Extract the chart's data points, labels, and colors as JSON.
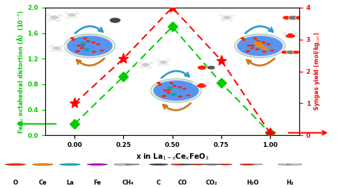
{
  "xlabel": "x in La$_{1-x}$Ce$_x$FeO$_3$",
  "ylabel_left": "FeO$_6$ octahedral distortion (Å)  (10$^{-4}$)",
  "ylabel_right": "Syngas yield (mol/kg$_{cat}$)",
  "ylim_left": [
    0.0,
    2.0
  ],
  "ylim_right": [
    0.0,
    4.0
  ],
  "xlim": [
    -0.15,
    1.15
  ],
  "xticks": [
    0,
    0.25,
    0.5,
    0.75,
    1.0
  ],
  "yticks_left": [
    0.0,
    0.4,
    0.8,
    1.2,
    1.6,
    2.0
  ],
  "yticks_right": [
    0,
    1,
    2,
    3,
    4
  ],
  "green_x": [
    0,
    0.25,
    0.5,
    0.75,
    1.0
  ],
  "green_y": [
    0.18,
    0.92,
    1.7,
    0.82,
    0.04
  ],
  "red_x": [
    0,
    0.25,
    0.5,
    0.75,
    1.0
  ],
  "red_y": [
    1.0,
    2.4,
    4.0,
    2.35,
    0.08
  ],
  "green_color": "#00cc00",
  "red_color": "#ff0000",
  "bg_color": "#ffffff"
}
